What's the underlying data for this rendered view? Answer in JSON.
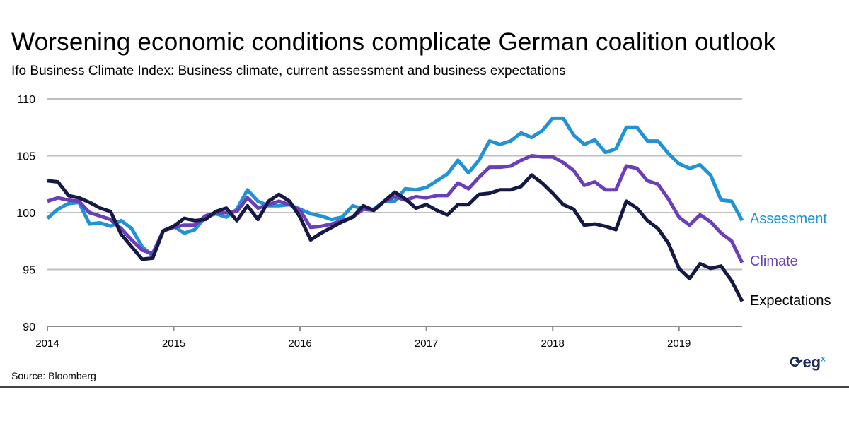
{
  "title": "Worsening economic conditions complicate German coalition outlook",
  "subtitle": "Ifo Business Climate Index: Business climate, current assessment and business expectations",
  "source": "Source:  Bloomberg",
  "logo": {
    "text": "eg",
    "sup": "x"
  },
  "chart_data": {
    "type": "line",
    "title": "Worsening economic conditions complicate German coalition outlook",
    "xlabel": "",
    "ylabel": "",
    "ylim": [
      90,
      110
    ],
    "yticks": [
      "90",
      "95",
      "100",
      "105",
      "110"
    ],
    "xticks": [
      "2014",
      "2015",
      "2016",
      "2017",
      "2018",
      "2019"
    ],
    "x_note": "monthly, Jan 2014 - Jul 2019",
    "grid": "horizontal",
    "legend": "right (inline labels at line ends)",
    "series": [
      {
        "name": "Assessment",
        "color": "#1f93d6",
        "values": [
          99.5,
          100.3,
          100.8,
          100.9,
          99.0,
          99.1,
          98.8,
          99.3,
          98.6,
          97.0,
          96.2,
          98.4,
          98.8,
          98.2,
          98.5,
          99.6,
          99.9,
          99.6,
          100.3,
          102.0,
          101.0,
          100.6,
          100.6,
          100.7,
          100.3,
          99.9,
          99.7,
          99.4,
          99.6,
          100.6,
          100.3,
          100.3,
          101.0,
          101.0,
          102.1,
          102.0,
          102.2,
          102.8,
          103.4,
          104.6,
          103.5,
          104.6,
          106.3,
          106.0,
          106.3,
          107.0,
          106.6,
          107.2,
          108.3,
          108.3,
          106.8,
          106.0,
          106.4,
          105.3,
          105.6,
          107.5,
          107.5,
          106.3,
          106.3,
          105.2,
          104.3,
          103.9,
          104.2,
          103.3,
          101.1,
          101.0,
          99.3
        ]
      },
      {
        "name": "Climate",
        "color": "#6b3fb8",
        "values": [
          101.0,
          101.3,
          101.1,
          101.0,
          100.0,
          99.7,
          99.4,
          98.6,
          97.6,
          96.7,
          96.4,
          98.4,
          98.7,
          98.9,
          98.9,
          99.7,
          100.0,
          100.0,
          100.1,
          101.3,
          100.4,
          100.7,
          101.0,
          100.7,
          100.2,
          98.7,
          98.8,
          99.0,
          99.3,
          99.6,
          100.3,
          100.2,
          101.0,
          101.4,
          101.1,
          101.4,
          101.3,
          101.5,
          101.5,
          102.6,
          102.1,
          103.1,
          104.0,
          104.0,
          104.1,
          104.6,
          105.0,
          104.9,
          104.9,
          104.4,
          103.7,
          102.4,
          102.7,
          102.0,
          102.0,
          104.1,
          103.9,
          102.8,
          102.5,
          101.2,
          99.6,
          98.9,
          99.8,
          99.2,
          98.2,
          97.5,
          95.6
        ]
      },
      {
        "name": "Expectations",
        "color": "#151a45",
        "values": [
          102.8,
          102.7,
          101.5,
          101.3,
          100.9,
          100.4,
          100.1,
          98.1,
          97.0,
          95.9,
          96.0,
          98.4,
          98.8,
          99.5,
          99.3,
          99.4,
          100.1,
          100.4,
          99.3,
          100.6,
          99.4,
          101.0,
          101.6,
          101.0,
          99.6,
          97.6,
          98.2,
          98.7,
          99.2,
          99.6,
          100.6,
          100.2,
          101.0,
          101.8,
          101.2,
          100.4,
          100.7,
          100.2,
          99.8,
          100.7,
          100.7,
          101.6,
          101.7,
          102.0,
          102.0,
          102.3,
          103.3,
          102.6,
          101.7,
          100.7,
          100.3,
          98.9,
          99.0,
          98.8,
          98.5,
          101.0,
          100.4,
          99.3,
          98.6,
          97.3,
          95.1,
          94.2,
          95.5,
          95.1,
          95.3,
          94.0,
          92.2
        ]
      }
    ]
  }
}
